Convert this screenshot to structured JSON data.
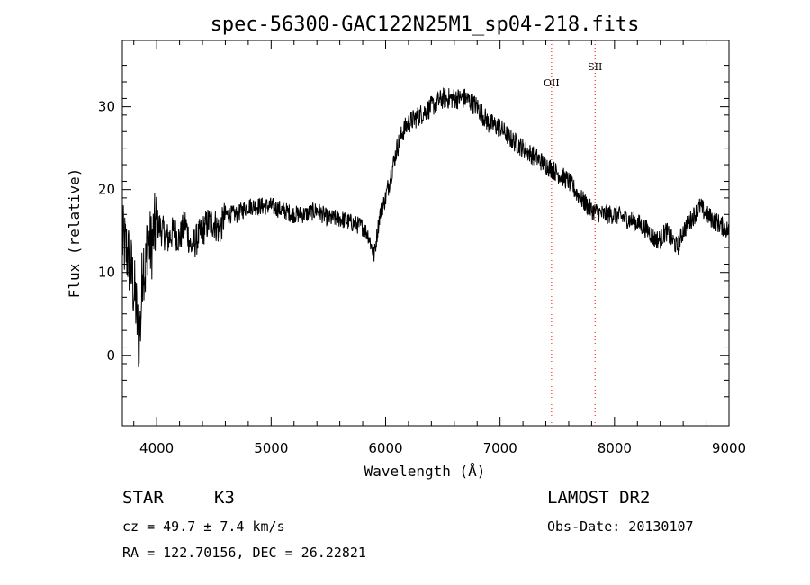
{
  "chart_data": {
    "type": "line",
    "title": "spec-56300-GAC122N25M1_sp04-218.fits",
    "xlabel": "Wavelength (Å)",
    "ylabel": "Flux (relative)",
    "xlim": [
      3700,
      9000
    ],
    "ylim": [
      -8.5,
      38
    ],
    "x_ticks": [
      4000,
      5000,
      6000,
      7000,
      8000,
      9000
    ],
    "y_ticks": [
      0,
      10,
      20,
      30
    ],
    "grid": false,
    "line_color": "#000000",
    "series": [
      {
        "x": [
          3700,
          3750,
          3780,
          3800,
          3820,
          3840,
          3860,
          3880,
          3900,
          3920,
          3950,
          3980,
          4000,
          4050,
          4100,
          4150,
          4200,
          4250,
          4300,
          4350,
          4400,
          4450,
          4500,
          4550,
          4600,
          4700,
          4800,
          4900,
          5000,
          5100,
          5200,
          5300,
          5400,
          5500,
          5600,
          5700,
          5800,
          5850,
          5900,
          5920,
          5950,
          6000,
          6050,
          6100,
          6150,
          6200,
          6300,
          6400,
          6500,
          6550,
          6600,
          6700,
          6800,
          6900,
          7000,
          7100,
          7200,
          7300,
          7400,
          7500,
          7600,
          7700,
          7800,
          7900,
          8000,
          8100,
          8200,
          8300,
          8350,
          8400,
          8450,
          8500,
          8550,
          8600,
          8700,
          8750,
          8800,
          8900,
          9000
        ],
        "y": [
          14,
          12,
          10,
          8,
          6,
          2,
          4,
          12,
          10,
          14,
          13,
          15,
          16,
          15,
          14,
          15,
          14,
          16,
          13,
          14,
          15,
          16,
          16,
          15,
          17,
          17,
          18,
          18,
          18,
          17.5,
          17,
          17,
          17.5,
          16.5,
          16.5,
          16,
          15.5,
          14.5,
          12,
          14,
          17,
          19,
          22,
          25,
          27,
          28,
          29,
          30,
          31,
          31,
          31,
          31,
          30,
          28,
          27.5,
          26,
          25,
          24,
          23,
          22,
          21,
          19,
          17.5,
          17,
          17,
          16.5,
          16,
          15,
          14,
          14,
          15,
          14,
          13,
          15,
          17,
          18,
          17,
          16,
          15
        ]
      }
    ],
    "emission_lines": [
      {
        "label": "OII",
        "x": 7450,
        "color": "#ff0000"
      },
      {
        "label": "SII",
        "x": 7830,
        "color": "#ff0000"
      }
    ]
  },
  "info": {
    "object_class": "STAR",
    "subclass": "K3",
    "survey": "LAMOST DR2",
    "cz": "cz = 49.7 ± 7.4 km/s",
    "obs_date": "Obs-Date: 20130107",
    "coords": "RA = 122.70156, DEC =  26.22821"
  }
}
